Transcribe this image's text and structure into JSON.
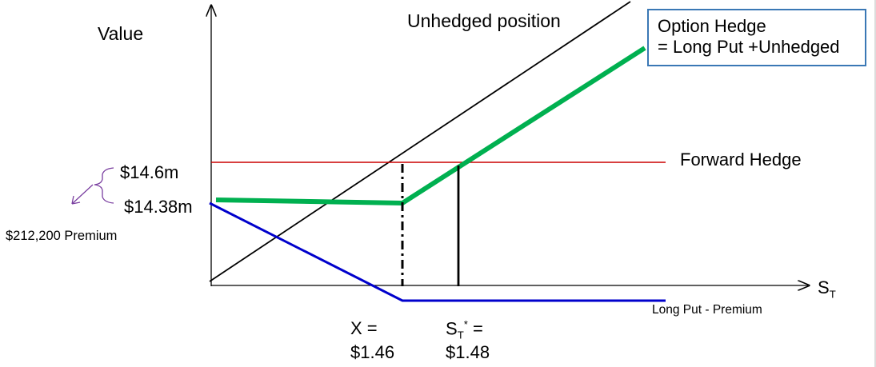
{
  "chart_data": {
    "type": "line",
    "title": "",
    "ylabel": "Value",
    "xlabel": "S",
    "xlabel_sub": "T",
    "series": [
      {
        "name": "Unhedged position",
        "color": "#000000"
      },
      {
        "name": "Forward Hedge",
        "color": "#cc0000"
      },
      {
        "name": "Long Put - Premium",
        "color": "#0000cc"
      },
      {
        "name": "Option Hedge",
        "color": "#00b050"
      }
    ],
    "strike": {
      "label_top": "X =",
      "value": "$1.46"
    },
    "breakeven": {
      "label_top_main": "S",
      "label_top_sub": "T",
      "label_top_sup": "*",
      "label_top_tail": " =",
      "value": "$1.48"
    },
    "y_levels": [
      {
        "label": "$14.6m"
      },
      {
        "label": "$14.38m"
      }
    ],
    "premium_note": "$212,200 Premium",
    "option_hedge_box": {
      "line1": "Option Hedge",
      "line2": "= Long Put +Unhedged"
    }
  }
}
